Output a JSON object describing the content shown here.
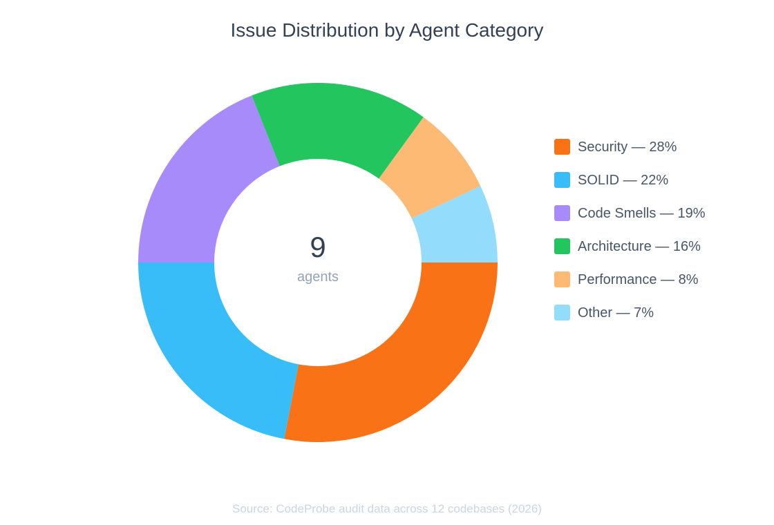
{
  "chart_data": {
    "type": "pie",
    "variant": "donut",
    "title": "Issue Distribution by Agent Category",
    "center_value": "9",
    "center_label": "agents",
    "categories": [
      "Security",
      "SOLID",
      "Code Smells",
      "Architecture",
      "Performance",
      "Other"
    ],
    "values": [
      28,
      22,
      19,
      16,
      8,
      7
    ],
    "unit": "%",
    "colors": [
      "#f97316",
      "#38bdf8",
      "#a78bfa",
      "#22c55e",
      "#fdba74",
      "#93dcfb"
    ],
    "legend_labels": [
      "Security — 28%",
      "SOLID — 22%",
      "Code Smells — 19%",
      "Architecture — 16%",
      "Performance — 8%",
      "Other — 7%"
    ],
    "legend_position": "right",
    "start_angle": "3 o'clock, clockwise",
    "source": "Source: CodeProbe audit data across 12 codebases (2026)"
  }
}
